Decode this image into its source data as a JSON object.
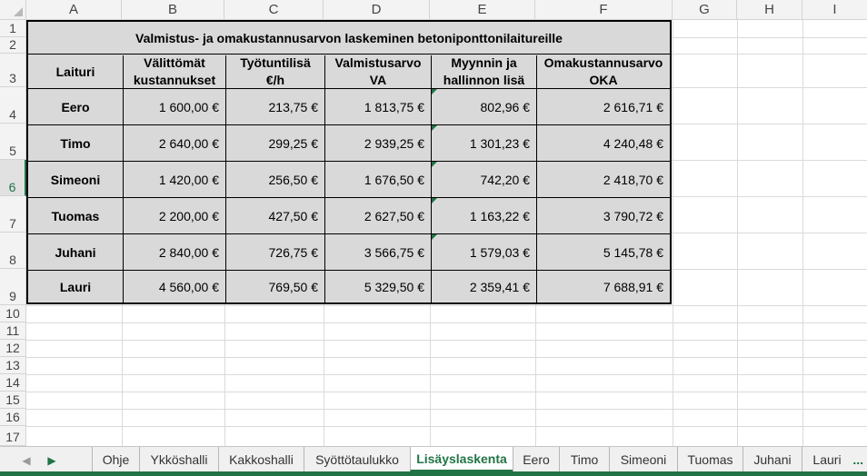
{
  "columns": [
    "A",
    "B",
    "C",
    "D",
    "E",
    "F",
    "G",
    "H",
    "I"
  ],
  "rows": [
    "1",
    "2",
    "3",
    "4",
    "5",
    "6",
    "7",
    "8",
    "9",
    "10",
    "11",
    "12",
    "13",
    "14",
    "15",
    "16",
    "17"
  ],
  "table": {
    "title": "Valmistus- ja omakustannusarvon laskeminen betoniponttonilaitureille",
    "headers": {
      "a": "Laituri",
      "b1": "Välittömät",
      "b2": "kustannukset",
      "c1": "Työtuntilisä",
      "c2": "€/h",
      "d1": "Valmistusarvo",
      "d2": "VA",
      "e1": "Myynnin ja",
      "e2": "hallinnon lisä",
      "f1": "Omakustannusarvo",
      "f2": "OKA"
    },
    "rows": [
      {
        "name": "Eero",
        "b": "1 600,00 €",
        "c": "213,75 €",
        "d": "1 813,75 €",
        "e": "802,96 €",
        "f": "2 616,71 €"
      },
      {
        "name": "Timo",
        "b": "2 640,00 €",
        "c": "299,25 €",
        "d": "2 939,25 €",
        "e": "1 301,23 €",
        "f": "4 240,48 €"
      },
      {
        "name": "Simeoni",
        "b": "1 420,00 €",
        "c": "256,50 €",
        "d": "1 676,50 €",
        "e": "742,20 €",
        "f": "2 418,70 €"
      },
      {
        "name": "Tuomas",
        "b": "2 200,00 €",
        "c": "427,50 €",
        "d": "2 627,50 €",
        "e": "1 163,22 €",
        "f": "3 790,72 €"
      },
      {
        "name": "Juhani",
        "b": "2 840,00 €",
        "c": "726,75 €",
        "d": "3 566,75 €",
        "e": "1 579,03 €",
        "f": "5 145,78 €"
      },
      {
        "name": "Lauri",
        "b": "4 560,00 €",
        "c": "769,50 €",
        "d": "5 329,50 €",
        "e": "2 359,41 €",
        "f": "7 688,91 €"
      }
    ]
  },
  "sheet_tabs": [
    "Ohje",
    "Ykköshalli",
    "Kakkoshalli",
    "Syöttötaulukko",
    "Lisäyslaskenta",
    "Eero",
    "Timo",
    "Simeoni",
    "Tuomas",
    "Juhani",
    "Lauri"
  ],
  "active_tab": "Lisäyslaskenta",
  "more_tabs": "...",
  "colors": {
    "accent": "#217346",
    "table_fill": "#d9d9d9"
  }
}
